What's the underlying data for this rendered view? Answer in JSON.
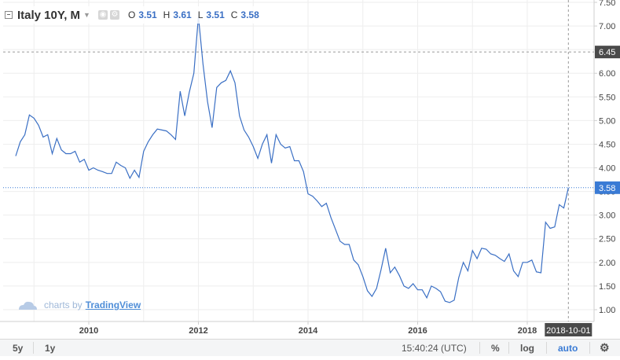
{
  "header": {
    "symbol": "Italy 10Y, M",
    "o_label": "O",
    "o_value": "3.51",
    "h_label": "H",
    "h_value": "3.61",
    "l_label": "L",
    "l_value": "3.51",
    "c_label": "C",
    "c_value": "3.58"
  },
  "watermark": {
    "prefix": "charts by",
    "brand": "TradingView"
  },
  "bottom_bar": {
    "range_5y": "5y",
    "range_1y": "1y",
    "clock": "15:40:24 (UTC)",
    "percent": "%",
    "log": "log",
    "auto": "auto"
  },
  "colors": {
    "line": "#3a6fc4",
    "last_price_label": "#3a7bd5",
    "crosshair_label": "#4a4a4a",
    "grid": "#eeeeee"
  },
  "chart_data": {
    "type": "line",
    "series": [
      {
        "x": [
          "2008-09",
          "2008-10",
          "2008-11",
          "2008-12",
          "2009-01",
          "2009-02",
          "2009-03",
          "2009-04",
          "2009-05",
          "2009-06",
          "2009-07",
          "2009-08",
          "2009-09",
          "2009-10",
          "2009-11",
          "2009-12",
          "2010-01",
          "2010-02",
          "2010-03",
          "2010-04",
          "2010-05",
          "2010-06",
          "2010-07",
          "2010-08",
          "2010-09",
          "2010-10",
          "2010-11",
          "2010-12",
          "2011-01",
          "2011-02",
          "2011-03",
          "2011-04",
          "2011-05",
          "2011-06",
          "2011-07",
          "2011-08",
          "2011-09",
          "2011-10",
          "2011-11",
          "2011-12",
          "2012-01",
          "2012-02",
          "2012-03",
          "2012-04",
          "2012-05",
          "2012-06",
          "2012-07",
          "2012-08",
          "2012-09",
          "2012-10",
          "2012-11",
          "2012-12",
          "2013-01",
          "2013-02",
          "2013-03",
          "2013-04",
          "2013-05",
          "2013-06",
          "2013-07",
          "2013-08",
          "2013-09",
          "2013-10",
          "2013-11",
          "2013-12",
          "2014-01",
          "2014-02",
          "2014-03",
          "2014-04",
          "2014-05",
          "2014-06",
          "2014-07",
          "2014-08",
          "2014-09",
          "2014-10",
          "2014-11",
          "2014-12",
          "2015-01",
          "2015-02",
          "2015-03",
          "2015-04",
          "2015-05",
          "2015-06",
          "2015-07",
          "2015-08",
          "2015-09",
          "2015-10",
          "2015-11",
          "2015-12",
          "2016-01",
          "2016-02",
          "2016-03",
          "2016-04",
          "2016-05",
          "2016-06",
          "2016-07",
          "2016-08",
          "2016-09",
          "2016-10",
          "2016-11",
          "2016-12",
          "2017-01",
          "2017-02",
          "2017-03",
          "2017-04",
          "2017-05",
          "2017-06",
          "2017-07",
          "2017-08",
          "2017-09",
          "2017-10",
          "2017-11",
          "2017-12",
          "2018-01",
          "2018-02",
          "2018-03",
          "2018-04",
          "2018-05",
          "2018-06",
          "2018-07",
          "2018-08",
          "2018-09",
          "2018-10"
        ],
        "values": [
          4.25,
          4.55,
          4.7,
          5.12,
          5.05,
          4.9,
          4.65,
          4.7,
          4.3,
          4.62,
          4.38,
          4.3,
          4.3,
          4.35,
          4.12,
          4.18,
          3.95,
          4.0,
          3.95,
          3.92,
          3.88,
          3.88,
          4.12,
          4.05,
          4.0,
          3.78,
          3.95,
          3.8,
          4.35,
          4.55,
          4.7,
          4.82,
          4.8,
          4.78,
          4.7,
          4.6,
          5.62,
          5.1,
          5.6,
          6.0,
          7.2,
          6.2,
          5.4,
          4.85,
          5.7,
          5.8,
          5.85,
          6.05,
          5.8,
          5.1,
          4.8,
          4.65,
          4.45,
          4.2,
          4.5,
          4.7,
          4.1,
          4.7,
          4.5,
          4.42,
          4.45,
          4.15,
          4.15,
          3.92,
          3.45,
          3.4,
          3.3,
          3.18,
          3.25,
          2.95,
          2.7,
          2.45,
          2.38,
          2.38,
          2.05,
          1.95,
          1.7,
          1.4,
          1.28,
          1.45,
          1.85,
          2.3,
          1.78,
          1.9,
          1.72,
          1.5,
          1.45,
          1.55,
          1.42,
          1.42,
          1.25,
          1.5,
          1.45,
          1.38,
          1.18,
          1.15,
          1.2,
          1.68,
          2.0,
          1.82,
          2.25,
          2.08,
          2.3,
          2.28,
          2.18,
          2.15,
          2.08,
          2.02,
          2.18,
          1.82,
          1.7,
          2.0,
          2.0,
          2.05,
          1.8,
          1.78,
          2.85,
          2.72,
          2.75,
          3.22,
          3.15,
          3.58
        ]
      }
    ],
    "xticks": [
      "2010",
      "2012",
      "2014",
      "2016",
      "2018"
    ],
    "yticks": [
      "1.00",
      "1.50",
      "2.00",
      "2.50",
      "3.00",
      "3.50",
      "4.00",
      "4.50",
      "5.00",
      "5.50",
      "6.00",
      "6.50",
      "7.00",
      "7.50"
    ],
    "ylim": [
      0.75,
      7.55
    ],
    "grid": true,
    "last_price_label": "3.58",
    "crosshair_price_label": "6.45",
    "crosshair_price": 6.45,
    "crosshair_date_label": "2018-10-01",
    "crosshair_date": "2018-10"
  }
}
